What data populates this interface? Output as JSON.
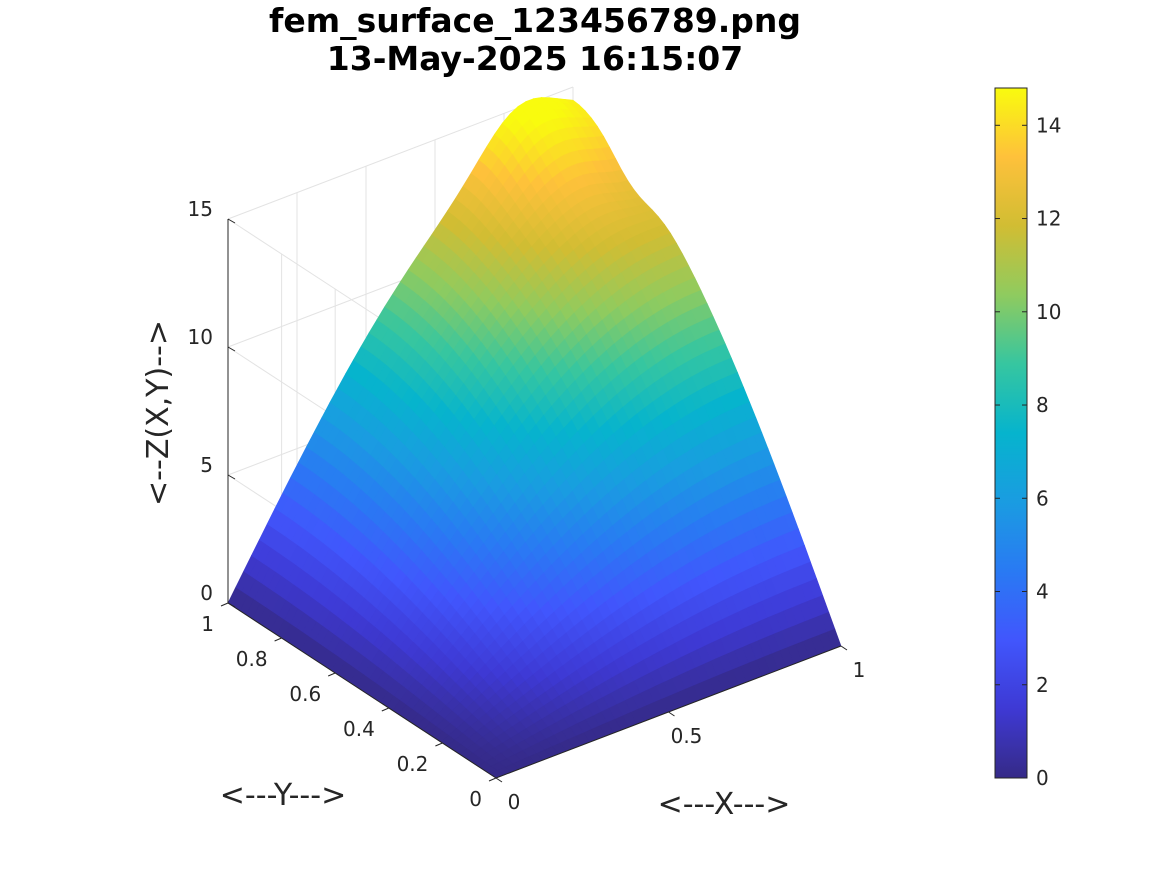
{
  "chart_data": {
    "type": "surface",
    "title": "fem_surface_123456789.png",
    "subtitle": "13-May-2025 16:15:07",
    "xlabel": "<---X--->",
    "ylabel": "<---Y--->",
    "zlabel": "<--Z(X,Y)-->",
    "xlim": [
      0,
      1
    ],
    "ylim": [
      0,
      1
    ],
    "zlim": [
      0,
      15
    ],
    "x_ticks": [
      0,
      0.5,
      1
    ],
    "x_tick_labels": [
      "0",
      "0.5",
      "1"
    ],
    "y_ticks": [
      0,
      0.2,
      0.4,
      0.6,
      0.8,
      1
    ],
    "y_tick_labels": [
      "0",
      "0.2",
      "0.4",
      "0.6",
      "0.8",
      "1"
    ],
    "z_ticks": [
      0,
      5,
      10,
      15
    ],
    "z_tick_labels": [
      "0",
      "5",
      "10",
      "15"
    ],
    "colormap": "parula",
    "color_limits": [
      0,
      14.8
    ],
    "colorbar_ticks": [
      0,
      2,
      4,
      6,
      8,
      10,
      12,
      14
    ],
    "colorbar_tick_labels": [
      "0",
      "2",
      "4",
      "6",
      "8",
      "10",
      "12",
      "14"
    ],
    "grid": true,
    "z_max_approx": 14.8,
    "surface": "z = 0 along x=0 and y=0, peak near (1, 1)"
  }
}
